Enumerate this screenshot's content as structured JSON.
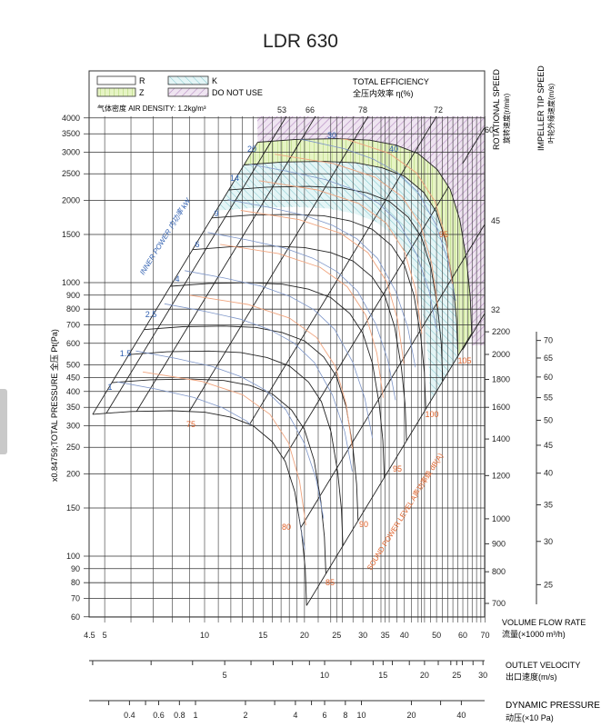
{
  "title": "LDR 630",
  "legend": {
    "items": [
      {
        "key": "R",
        "color": "#ffffff"
      },
      {
        "key": "Z",
        "color": "#dff0b8"
      },
      {
        "key": "K",
        "color": "#cfeef0"
      },
      {
        "key": "DO NOT USE",
        "color": "#c9a7d0"
      }
    ],
    "air_density": "气体密度 AIR DENSITY: 1.2kg/m³",
    "efficiency_title": "TOTAL EFFICIENCY",
    "efficiency_title_cn": "全压内效率 η(%)"
  },
  "chart_data": {
    "type": "line",
    "title": "LDR 630",
    "xlabel": "VOLUME FLOW RATE",
    "xlabel_cn": "流量(×1000 m³/h)",
    "ylabel": "x0.84759;TOTAL PRESSURE 全压 Pt(Pa)",
    "xscale": "log",
    "yscale": "log",
    "xlim": [
      4.5,
      70
    ],
    "ylim": [
      60,
      4000
    ],
    "x_ticks": [
      "4.5",
      "5",
      "10",
      "15",
      "20",
      "25",
      "30",
      "35",
      "40",
      "50",
      "60",
      "70"
    ],
    "y_ticks": [
      "4000",
      "3500",
      "3000",
      "2500",
      "2000",
      "1500",
      "1000",
      "900",
      "800",
      "700",
      "600",
      "500",
      "450",
      "400",
      "350",
      "300",
      "250",
      "200",
      "150",
      "100",
      "90",
      "80",
      "70",
      "60"
    ],
    "rotational_speed": {
      "title": "ROTATIONAL SPEED",
      "title_cn": "旋转速度(r/min)",
      "ticks": [
        "2200",
        "2000",
        "1800",
        "1600",
        "1400",
        "1200",
        "1000",
        "900",
        "800",
        "700"
      ]
    },
    "tip_speed": {
      "title": "IMPELLER TIP SPEED",
      "title_cn": "叶轮外缘速度(m/s)",
      "ticks": [
        "70",
        "65",
        "60",
        "55",
        "50",
        "45",
        "40",
        "35",
        "30",
        "25"
      ]
    },
    "outlet_velocity": {
      "title": "OUTLET VELOCITY",
      "title_cn": "出口速度(m/s)",
      "ticks": [
        "5",
        "10",
        "15",
        "20",
        "25",
        "30"
      ]
    },
    "dynamic_pressure": {
      "title": "DYNAMIC PRESSURE",
      "title_cn": "动压(×10 Pa)",
      "ticks": [
        "0.4",
        "0.6",
        "0.8",
        "1",
        "2",
        "4",
        "6",
        "8",
        "10",
        "20",
        "40"
      ]
    },
    "efficiency_labels": [
      "53",
      "66",
      "78",
      "72",
      "60",
      "45",
      "32"
    ],
    "inner_power": {
      "title": "INNER POWER 内功率 kW",
      "labels": [
        "1",
        "1.5",
        "2.5",
        "4",
        "6",
        "9",
        "14",
        "20",
        "30",
        "40"
      ]
    },
    "sound_power": {
      "title": "SOUND POWER LEVEL A声功率级 dB(A)",
      "labels": [
        "75",
        "80",
        "85",
        "90",
        "95",
        "100",
        "105",
        "95"
      ]
    },
    "fan_curve_speeds_rpm": [
      700,
      800,
      900,
      1000,
      1200,
      1400,
      1600,
      1800,
      2000,
      2200
    ],
    "base_curve_700rpm": {
      "flow": [
        4.6,
        6,
        8,
        10,
        12,
        14,
        16,
        17.5,
        18.7,
        19.6,
        20.1,
        20.3
      ],
      "pressure": [
        330,
        338,
        340,
        336,
        322,
        300,
        262,
        222,
        172,
        122,
        90,
        66
      ]
    },
    "zones": [
      "R",
      "Z",
      "K",
      "DO NOT USE"
    ]
  }
}
